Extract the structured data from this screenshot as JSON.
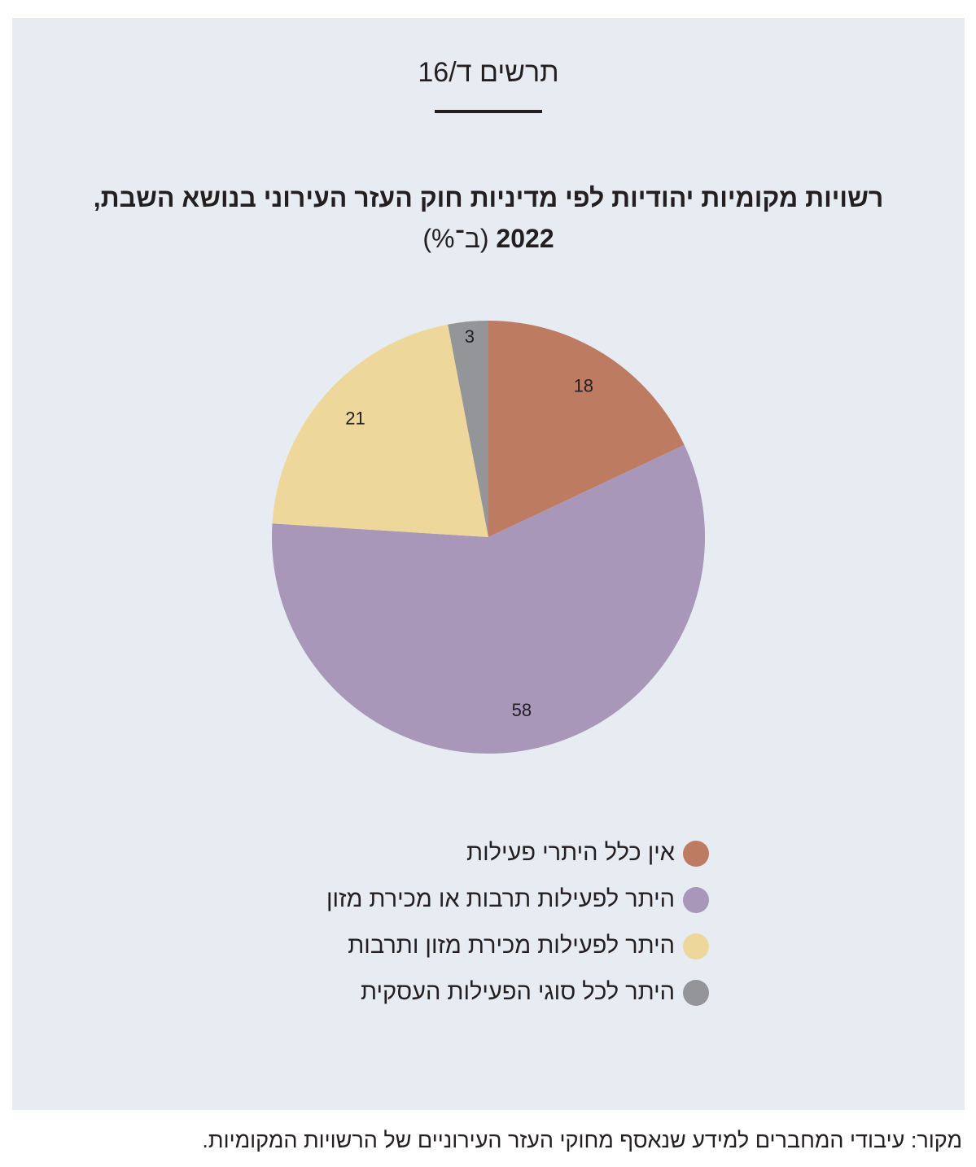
{
  "figure_label": "תרשים ד/16",
  "chart_data": {
    "type": "pie",
    "title": "רשויות מקומיות יהודיות לפי מדיניות חוק העזר העירוני בנושא השבת, 2022",
    "unit": "(ב־%)",
    "slices": [
      {
        "name": "אין כלל היתרי פעילות",
        "value": 18,
        "color": "#bd7c62"
      },
      {
        "name": "היתר לפעילות תרבות או מכירת מזון",
        "value": 58,
        "color": "#a897b8"
      },
      {
        "name": "היתר לפעילות מכירת מזון ותרבות",
        "value": 21,
        "color": "#edd79b"
      },
      {
        "name": "היתר לכל סוגי הפעילות העסקית",
        "value": 3,
        "color": "#939598"
      }
    ],
    "legend_position": "bottom"
  },
  "source": "מקור: עיבודי המחברים למידע שנאסף מחוקי העזר העירוניים של הרשויות המקומיות."
}
